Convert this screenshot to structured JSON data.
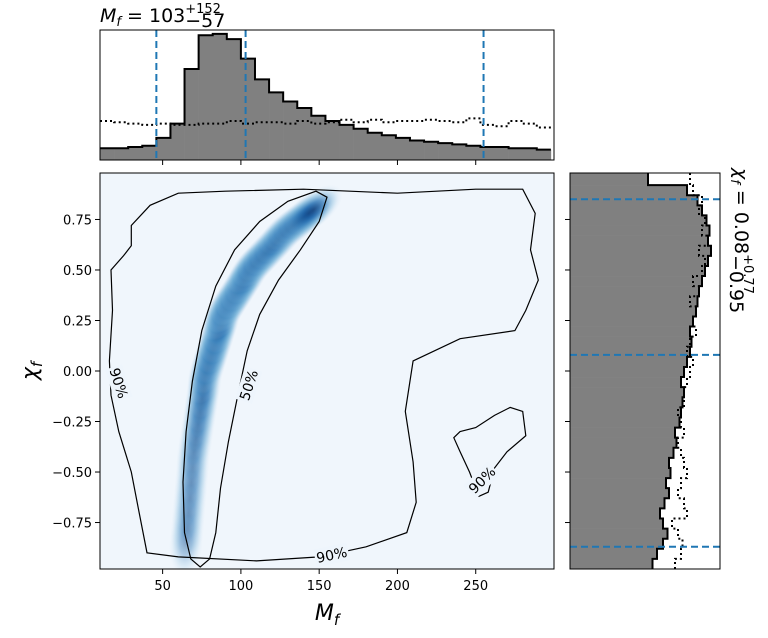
{
  "chart_data": {
    "type": "heatmap",
    "joint": {
      "xlim": [
        10,
        300
      ],
      "ylim": [
        -0.98,
        0.98
      ],
      "x_ticks": [
        50,
        100,
        150,
        200,
        250
      ],
      "y_ticks": [
        0.75,
        0.5,
        0.25,
        0.0,
        -0.25,
        -0.5,
        -0.75
      ],
      "x_tick_labels": [
        "50",
        "100",
        "150",
        "200",
        "250"
      ],
      "y_tick_labels": [
        "0.75",
        "0.50",
        "0.25",
        "0.00",
        "−0.25",
        "−0.50",
        "−0.75"
      ],
      "xlabel": "M_f",
      "ylabel": "χ_f",
      "colormap": "Blues",
      "density_ridge": [
        {
          "x": 65,
          "y": -0.85
        },
        {
          "x": 70,
          "y": -0.4
        },
        {
          "x": 78,
          "y": 0.0
        },
        {
          "x": 90,
          "y": 0.3
        },
        {
          "x": 108,
          "y": 0.52
        },
        {
          "x": 130,
          "y": 0.7
        },
        {
          "x": 150,
          "y": 0.82
        }
      ],
      "contours": [
        {
          "label": "50%",
          "label_at": {
            "x": 105,
            "y": -0.07
          },
          "label_rotation": -72
        },
        {
          "label": "90%",
          "label_at": {
            "x": 22,
            "y": -0.06
          },
          "label_rotation": 72
        },
        {
          "label": "90%",
          "label_at": {
            "x": 158,
            "y": -0.91
          },
          "label_rotation": -12
        },
        {
          "label": "90%",
          "label_at": {
            "x": 254,
            "y": -0.54
          },
          "label_rotation": -45
        }
      ]
    },
    "marginal_x": {
      "title_base": "M",
      "title_sub": "f",
      "title_eq": " = 103",
      "title_sup": "+152",
      "title_inf": "−57",
      "median": 103,
      "lower": 46,
      "upper": 255,
      "bin_edges": [
        10,
        19,
        28,
        37,
        46,
        55,
        64,
        73,
        82,
        91,
        100,
        109,
        118,
        127,
        136,
        145,
        154,
        163,
        172,
        181,
        190,
        199,
        208,
        217,
        226,
        235,
        244,
        253,
        262,
        271,
        280,
        289,
        298
      ],
      "posterior": [
        0.09,
        0.09,
        0.1,
        0.11,
        0.17,
        0.28,
        0.7,
        0.96,
        0.97,
        0.93,
        0.78,
        0.62,
        0.52,
        0.45,
        0.4,
        0.34,
        0.3,
        0.27,
        0.24,
        0.21,
        0.19,
        0.17,
        0.15,
        0.14,
        0.13,
        0.12,
        0.11,
        0.1,
        0.1,
        0.09,
        0.09,
        0.08
      ],
      "prior": [
        0.3,
        0.29,
        0.28,
        0.27,
        0.28,
        0.27,
        0.27,
        0.28,
        0.28,
        0.3,
        0.28,
        0.29,
        0.29,
        0.28,
        0.3,
        0.28,
        0.29,
        0.31,
        0.29,
        0.31,
        0.29,
        0.3,
        0.3,
        0.31,
        0.3,
        0.29,
        0.32,
        0.27,
        0.26,
        0.3,
        0.28,
        0.25
      ]
    },
    "marginal_y": {
      "title_base": "χ",
      "title_sub": "f",
      "title_eq": " = 0.08",
      "title_sup": "+0.77",
      "title_inf": "−0.95",
      "median": 0.08,
      "lower": -0.87,
      "upper": 0.85,
      "bin_edges": [
        -0.98,
        -0.93,
        -0.88,
        -0.83,
        -0.78,
        -0.73,
        -0.68,
        -0.63,
        -0.58,
        -0.53,
        -0.48,
        -0.43,
        -0.38,
        -0.33,
        -0.28,
        -0.23,
        -0.18,
        -0.13,
        -0.08,
        -0.03,
        0.02,
        0.07,
        0.12,
        0.17,
        0.22,
        0.27,
        0.32,
        0.37,
        0.42,
        0.47,
        0.52,
        0.57,
        0.62,
        0.67,
        0.72,
        0.77,
        0.82,
        0.87,
        0.92,
        0.98
      ],
      "posterior": [
        0.55,
        0.58,
        0.62,
        0.65,
        0.62,
        0.6,
        0.63,
        0.66,
        0.64,
        0.67,
        0.66,
        0.69,
        0.71,
        0.7,
        0.73,
        0.74,
        0.75,
        0.76,
        0.74,
        0.76,
        0.78,
        0.8,
        0.81,
        0.8,
        0.82,
        0.84,
        0.85,
        0.86,
        0.88,
        0.9,
        0.92,
        0.94,
        0.92,
        0.93,
        0.91,
        0.88,
        0.85,
        0.78,
        0.52
      ],
      "prior": [
        0.7,
        0.74,
        0.75,
        0.72,
        0.68,
        0.78,
        0.76,
        0.72,
        0.74,
        0.78,
        0.76,
        0.74,
        0.72,
        0.76,
        0.74,
        0.72,
        0.76,
        0.76,
        0.78,
        0.8,
        0.82,
        0.78,
        0.8,
        0.84,
        0.82,
        0.84,
        0.8,
        0.86,
        0.82,
        0.88,
        0.9,
        0.86,
        0.92,
        0.88,
        0.9,
        0.86,
        0.88,
        0.82,
        0.8
      ]
    }
  }
}
